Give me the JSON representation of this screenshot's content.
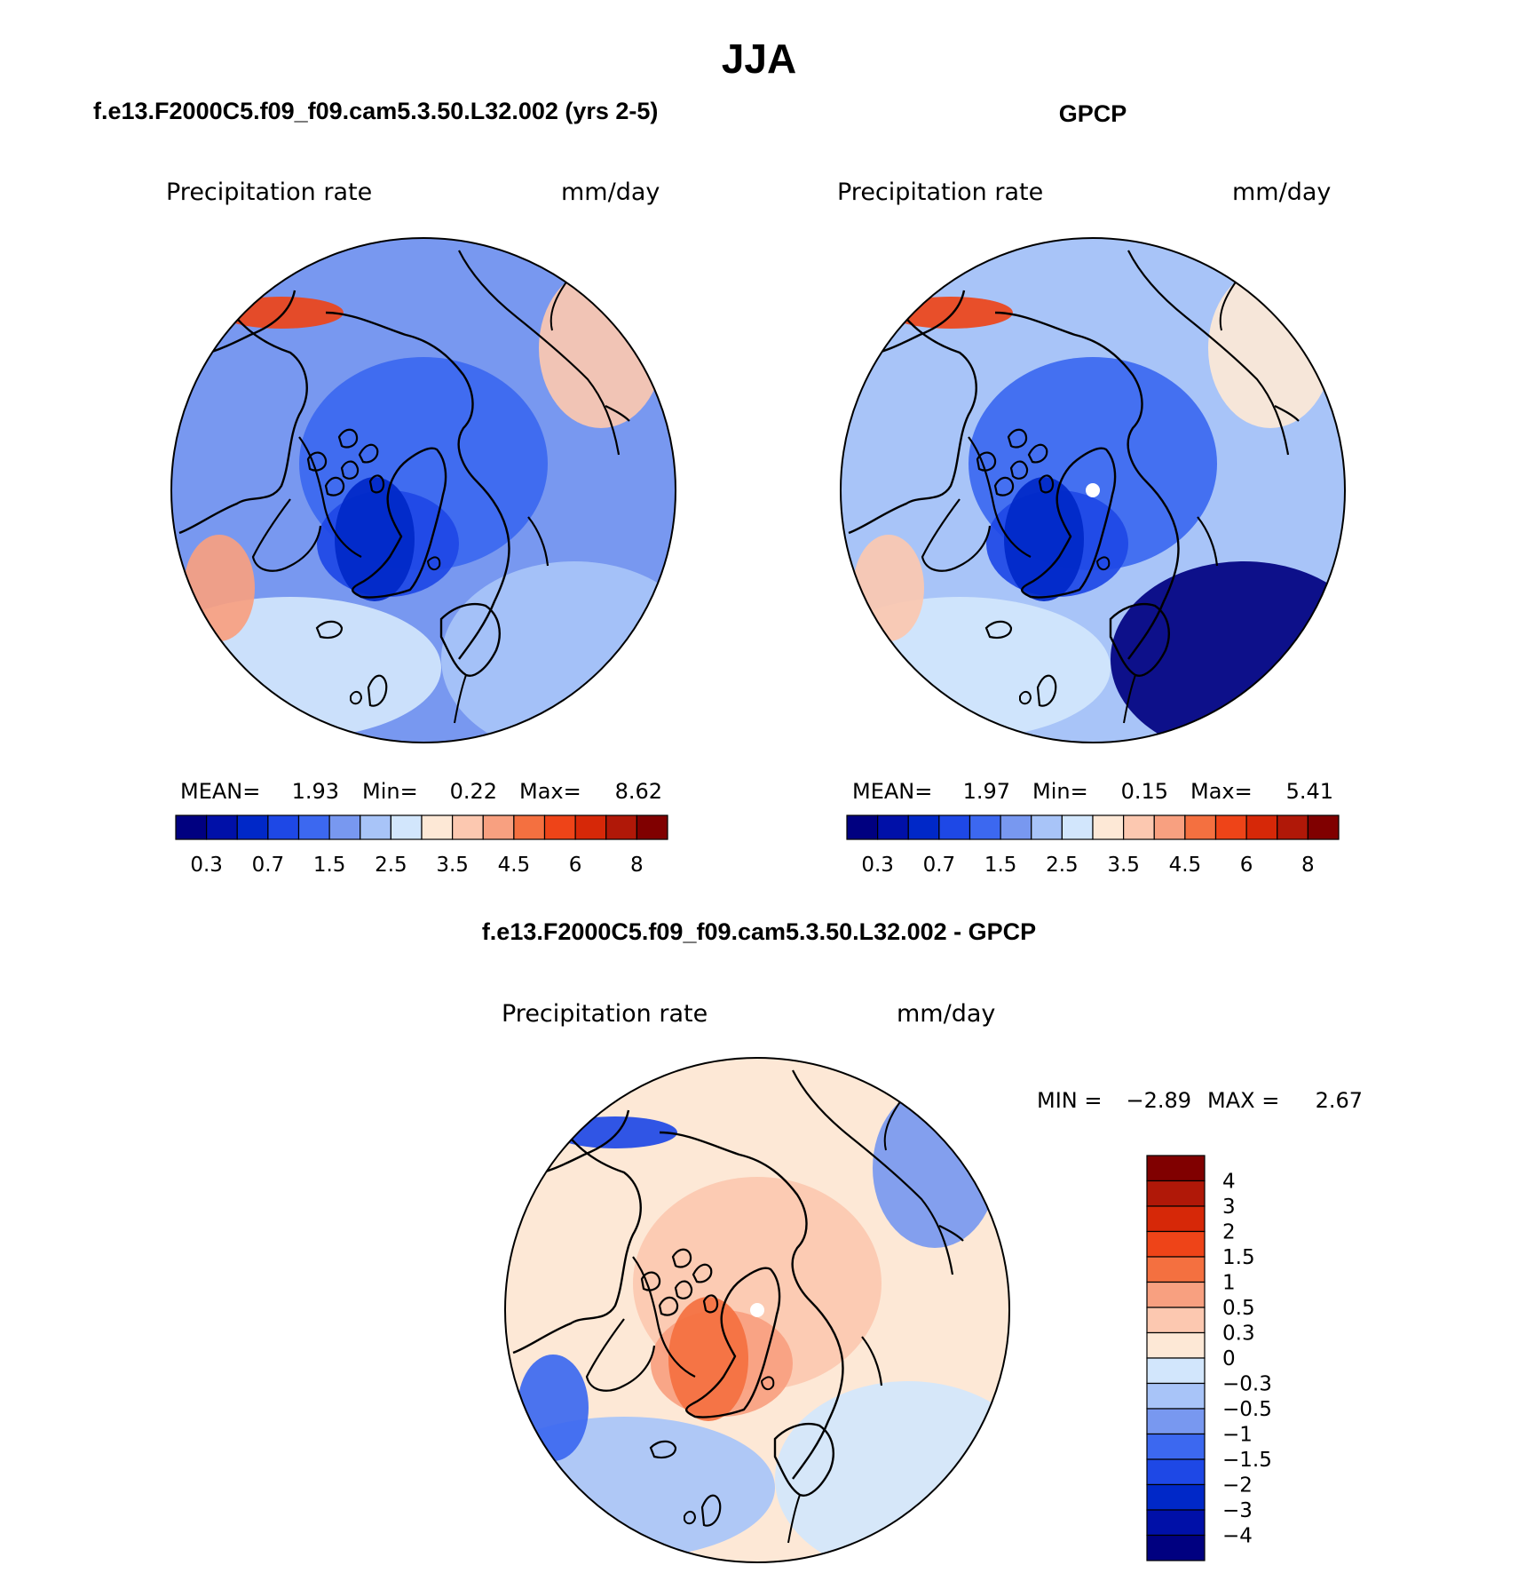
{
  "figure": {
    "season": "JJA",
    "titles": {
      "model": "f.e13.F2000C5.f09_f09.cam5.3.50.L32.002 (yrs 2-5)",
      "obs": "GPCP",
      "diff": "f.e13.F2000C5.f09_f09.cam5.3.50.L32.002 - GPCP"
    }
  },
  "panels": {
    "model": {
      "variable": "Precipitation rate",
      "units": "mm/day",
      "stats": {
        "mean_label": "MEAN=",
        "mean": "1.93",
        "min_label": "Min=",
        "min": "0.22",
        "max_label": "Max=",
        "max": "8.62"
      }
    },
    "obs": {
      "variable": "Precipitation rate",
      "units": "mm/day",
      "stats": {
        "mean_label": "MEAN=",
        "mean": "1.97",
        "min_label": "Min=",
        "min": "0.15",
        "max_label": "Max=",
        "max": "5.41"
      }
    },
    "diff": {
      "variable": "Precipitation rate",
      "units": "mm/day",
      "stats": {
        "min_label": "MIN =",
        "min": "−2.89",
        "max_label": "MAX =",
        "max": "2.67"
      }
    }
  },
  "colorbars": {
    "precip": {
      "colors": [
        "#000080",
        "#0010a8",
        "#0028c8",
        "#1e48e6",
        "#3c68f0",
        "#7898f0",
        "#a8c4f8",
        "#d2e6fc",
        "#fde8d6",
        "#fcc8b0",
        "#f8a080",
        "#f47040",
        "#ee4418",
        "#d62808",
        "#b01808",
        "#800000"
      ],
      "labels": [
        "0.3",
        "0.7",
        "1.5",
        "2.5",
        "3.5",
        "4.5",
        "6",
        "8"
      ]
    },
    "diff": {
      "colors": [
        "#000080",
        "#0010a8",
        "#0028c8",
        "#1e48e6",
        "#3c68f0",
        "#7898f0",
        "#a8c4f8",
        "#d2e6fc",
        "#fde8d6",
        "#fcc8b0",
        "#f8a080",
        "#f47040",
        "#ee4418",
        "#d62808",
        "#b01808",
        "#800000"
      ],
      "labels": [
        "4",
        "3",
        "2",
        "1.5",
        "1",
        "0.5",
        "0.3",
        "0",
        "−0.3",
        "−0.5",
        "−1",
        "−1.5",
        "−2",
        "−3",
        "−4"
      ]
    }
  },
  "map_colors": {
    "model": {
      "base": "#7898f0",
      "zones": [
        "#3c68f0",
        "#1e48e6",
        "#0028c8",
        "#a8c4f8",
        "#d2e6fc",
        "#fcc8b0",
        "#f8a080",
        "#ee4418"
      ]
    },
    "obs": {
      "base": "#a8c4f8",
      "zones": [
        "#3c68f0",
        "#1e48e6",
        "#0028c8",
        "#000080",
        "#d2e6fc",
        "#fde8d6",
        "#fcc8b0",
        "#ee4418"
      ]
    },
    "diff": {
      "base": "#fde8d6",
      "zones": [
        "#fcc8b0",
        "#f8a080",
        "#f47040",
        "#d2e6fc",
        "#a8c4f8",
        "#7898f0",
        "#3c68f0",
        "#1e48e6"
      ]
    },
    "pole_marker": "#ffffff",
    "coastline": "#000000"
  }
}
